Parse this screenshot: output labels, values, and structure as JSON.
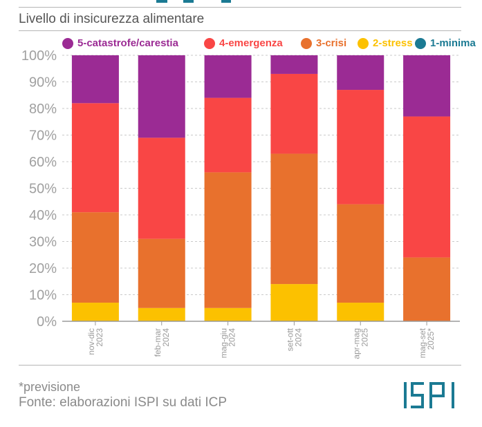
{
  "header": {
    "subtitle": "Livello di insicurezza alimentare"
  },
  "footer": {
    "note": "*previsione",
    "source": "Fonte: elaborazioni ISPI su dati ICP",
    "logo_text": "ISPI"
  },
  "colors": {
    "title_accent": "#1b7a93",
    "logo": "#1b7a93",
    "rules": "#b5b5b5"
  },
  "chart_data": {
    "type": "bar",
    "stacked": true,
    "title": "",
    "xlabel": "",
    "ylabel": "",
    "ylim": [
      0,
      100
    ],
    "y_ticks": [
      "0%",
      "10%",
      "20%",
      "30%",
      "40%",
      "50%",
      "60%",
      "70%",
      "80%",
      "90%",
      "100%"
    ],
    "grid": true,
    "legend_position": "top",
    "categories": [
      [
        "nov-dic",
        "2023"
      ],
      [
        "feb-mar",
        "2024"
      ],
      [
        "mag-giu",
        "2024"
      ],
      [
        "set-ott",
        "2024"
      ],
      [
        "apr-mag",
        "2025"
      ],
      [
        "mag-set",
        "2025*"
      ]
    ],
    "series": [
      {
        "name": "1-minima",
        "color": "#1b7a93",
        "values": [
          0,
          0,
          0,
          0,
          0,
          0
        ]
      },
      {
        "name": "2-stress",
        "color": "#fcc100",
        "values": [
          7,
          5,
          5,
          14,
          7,
          0
        ]
      },
      {
        "name": "3-crisi",
        "color": "#e8712d",
        "values": [
          34,
          26,
          51,
          49,
          37,
          24
        ]
      },
      {
        "name": "4-emergenza",
        "color": "#f94645",
        "values": [
          41,
          38,
          28,
          30,
          43,
          53
        ]
      },
      {
        "name": "5-catastrofe/carestia",
        "color": "#9b2b94",
        "values": [
          18,
          31,
          16,
          7,
          13,
          23
        ]
      }
    ]
  }
}
